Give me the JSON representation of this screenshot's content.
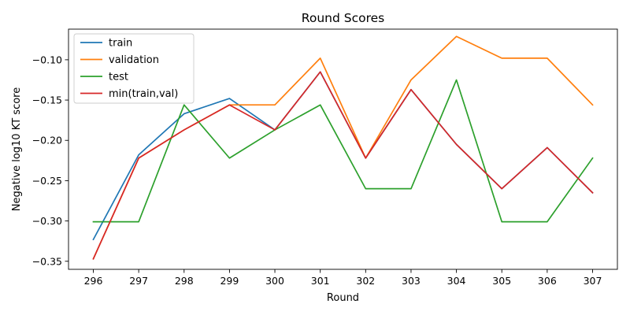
{
  "chart_data": {
    "type": "line",
    "title": "Round Scores",
    "xlabel": "Round",
    "ylabel": "Negative log10 KT score",
    "x": [
      296,
      297,
      298,
      299,
      300,
      301,
      302,
      303,
      304,
      305,
      306,
      307
    ],
    "ylim": [
      -0.36,
      -0.062
    ],
    "yticks": [
      -0.35,
      -0.3,
      -0.25,
      -0.2,
      -0.15,
      -0.1
    ],
    "ytick_labels": [
      "−0.35",
      "−0.30",
      "−0.25",
      "−0.20",
      "−0.15",
      "−0.10"
    ],
    "grid": false,
    "legend_position": "top-left",
    "series": [
      {
        "name": "train",
        "color": "#1f77b4",
        "values": [
          -0.323,
          -0.218,
          -0.167,
          -0.148,
          -0.187,
          -0.115,
          -0.222,
          -0.137,
          -0.205,
          -0.26,
          -0.209,
          -0.265
        ]
      },
      {
        "name": "validation",
        "color": "#ff7f0e",
        "values": [
          -0.347,
          -0.222,
          -0.187,
          -0.156,
          -0.156,
          -0.098,
          -0.222,
          -0.125,
          -0.071,
          -0.098,
          -0.098,
          -0.156
        ]
      },
      {
        "name": "test",
        "color": "#2ca02c",
        "values": [
          -0.301,
          -0.301,
          -0.156,
          -0.222,
          -0.187,
          -0.156,
          -0.26,
          -0.26,
          -0.125,
          -0.301,
          -0.301,
          -0.222
        ]
      },
      {
        "name": "min(train,val)",
        "color": "#d62728",
        "values": [
          -0.347,
          -0.222,
          -0.187,
          -0.156,
          -0.187,
          -0.115,
          -0.222,
          -0.137,
          -0.205,
          -0.26,
          -0.209,
          -0.265
        ]
      }
    ]
  }
}
